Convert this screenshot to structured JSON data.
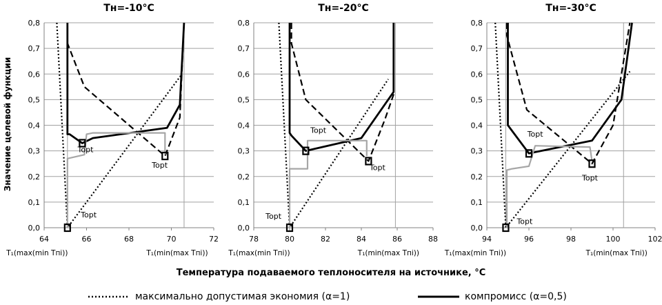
{
  "ylabel": "Значение целевой функции",
  "xlabel": "Температура подаваемого теплоносителя на источнике, °C",
  "legend": [
    {
      "key": "dotted",
      "label": "максимально допустимая экономия (α=1)"
    },
    {
      "key": "solid",
      "label": "компромисс (α=0,5)"
    }
  ],
  "colors": {
    "main": "#000000",
    "gray": "#a6a6a6",
    "grid": "#a0a0a0"
  },
  "chart_data": [
    {
      "type": "line",
      "title": "Тн=-10°С",
      "xlim": [
        64,
        72
      ],
      "ylim": [
        0,
        0.8
      ],
      "xticks": [
        "64",
        "66",
        "68",
        "70",
        "72"
      ],
      "yticks": [
        "0,0",
        "0,1",
        "0,2",
        "0,3",
        "0,4",
        "0,5",
        "0,6",
        "0,7",
        "0,8"
      ],
      "grid": "horizontal",
      "annotations": [
        {
          "text": "T₁(max(min Tпi))",
          "x": 65.1,
          "y": 0
        },
        {
          "text": "T₁(min(max Tпi))",
          "x": 70.6,
          "y": 0
        }
      ],
      "topt_labels": [
        {
          "text": "Topt",
          "x": 65.95,
          "y": 0.295
        },
        {
          "text": "Topt",
          "x": 69.45,
          "y": 0.235
        },
        {
          "text": "Topt",
          "x": 66.1,
          "y": 0.04
        }
      ],
      "series": [
        {
          "key": "dotted",
          "x": [
            64.6,
            65.1,
            70.5
          ],
          "y": [
            0.8,
            0,
            0.6
          ]
        },
        {
          "key": "dashed",
          "x": [
            65.1,
            65.1,
            65.9,
            69.7,
            70.4,
            70.6
          ],
          "y": [
            0.8,
            0.72,
            0.55,
            0.28,
            0.43,
            0.8
          ]
        },
        {
          "key": "solid",
          "x": [
            65.1,
            65.1,
            65.2,
            65.8,
            66.3,
            69.8,
            70.4,
            70.6
          ],
          "y": [
            0.8,
            0.365,
            0.365,
            0.33,
            0.35,
            0.39,
            0.48,
            0.8
          ]
        },
        {
          "key": "gray",
          "x": [
            65.1,
            65.1,
            65.9,
            66.0,
            66.3,
            69.7,
            69.7
          ],
          "y": [
            0,
            0.27,
            0.285,
            0.365,
            0.37,
            0.37,
            0.285
          ]
        }
      ]
    },
    {
      "type": "line",
      "title": "Тн=-20°С",
      "xlim": [
        78,
        88
      ],
      "ylim": [
        0,
        0.8
      ],
      "xticks": [
        "78",
        "80",
        "82",
        "84",
        "86",
        "88"
      ],
      "yticks": [
        "0,0",
        "0,1",
        "0,2",
        "0,3",
        "0,4",
        "0,5",
        "0,6",
        "0,7",
        "0,8"
      ],
      "grid": "horizontal",
      "annotations": [
        {
          "text": "T₁(max(min Tпi))",
          "x": 80.0,
          "y": 0
        },
        {
          "text": "T₁(min(max Tпi))",
          "x": 85.9,
          "y": 0
        }
      ],
      "topt_labels": [
        {
          "text": "Topt",
          "x": 81.6,
          "y": 0.37
        },
        {
          "text": "Topt",
          "x": 84.9,
          "y": 0.225
        },
        {
          "text": "Topt",
          "x": 79.1,
          "y": 0.035
        }
      ],
      "series": [
        {
          "key": "dotted",
          "x": [
            79.4,
            80.0,
            85.5
          ],
          "y": [
            0.8,
            0,
            0.58
          ]
        },
        {
          "key": "dashed",
          "x": [
            80.1,
            80.1,
            80.9,
            84.4,
            85.3,
            85.8,
            85.8
          ],
          "y": [
            0.8,
            0.72,
            0.5,
            0.26,
            0.42,
            0.52,
            0.8
          ]
        },
        {
          "key": "solid",
          "x": [
            80.0,
            80.0,
            80.1,
            80.9,
            84.0,
            85.8,
            85.8
          ],
          "y": [
            0.8,
            0.37,
            0.36,
            0.3,
            0.35,
            0.53,
            0.8
          ]
        },
        {
          "key": "gray",
          "x": [
            80.0,
            80.0,
            81.0,
            81.0,
            84.3,
            84.3
          ],
          "y": [
            0,
            0.23,
            0.23,
            0.34,
            0.34,
            0.28
          ]
        }
      ]
    },
    {
      "type": "line",
      "title": "Тн=-30°С",
      "xlim": [
        94,
        102
      ],
      "ylim": [
        0,
        0.8
      ],
      "xticks": [
        "94",
        "96",
        "98",
        "100",
        "102"
      ],
      "yticks": [
        "0,0",
        "0,1",
        "0,2",
        "0,3",
        "0,4",
        "0,5",
        "0,6",
        "0,7",
        "0,8"
      ],
      "grid": "horizontal",
      "annotations": [
        {
          "text": "T₁(max(min Tпi))",
          "x": 94.9,
          "y": 0
        },
        {
          "text": "T₁(min(max Tпi))",
          "x": 100.5,
          "y": 0
        }
      ],
      "topt_labels": [
        {
          "text": "Topt",
          "x": 96.3,
          "y": 0.355
        },
        {
          "text": "Topt",
          "x": 98.9,
          "y": 0.185
        },
        {
          "text": "Topt",
          "x": 95.8,
          "y": 0.015
        }
      ],
      "series": [
        {
          "key": "dotted",
          "x": [
            94.4,
            94.9,
            100.8
          ],
          "y": [
            0.8,
            0,
            0.61
          ]
        },
        {
          "key": "dashed",
          "x": [
            94.95,
            94.95,
            95.9,
            99.0,
            100.0,
            100.8
          ],
          "y": [
            0.8,
            0.75,
            0.46,
            0.25,
            0.4,
            0.8
          ]
        },
        {
          "key": "solid",
          "x": [
            95.0,
            95.0,
            96.0,
            99.0,
            100.4,
            100.9
          ],
          "y": [
            0.8,
            0.4,
            0.29,
            0.34,
            0.5,
            0.8
          ]
        },
        {
          "key": "gray",
          "x": [
            94.95,
            94.95,
            95.2,
            96.0,
            96.3,
            98.9,
            99.0
          ],
          "y": [
            0,
            0.225,
            0.23,
            0.24,
            0.32,
            0.315,
            0.26
          ]
        }
      ]
    }
  ]
}
